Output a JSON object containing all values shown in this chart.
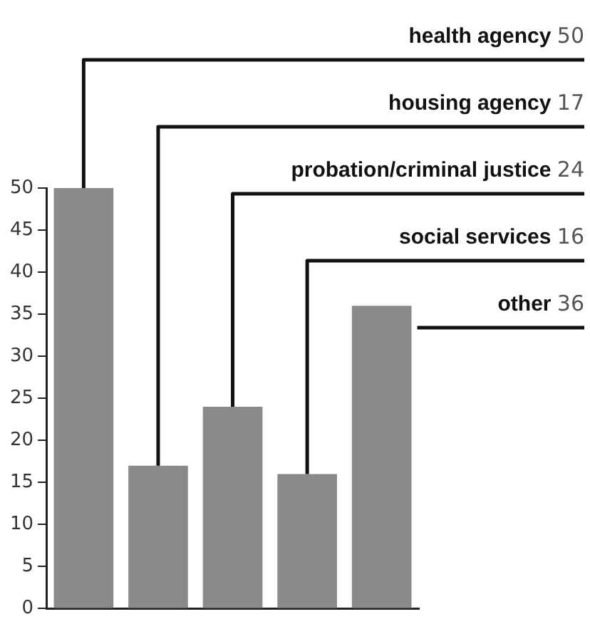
{
  "chart_data": {
    "type": "bar",
    "categories": [
      null,
      null,
      null,
      null,
      null
    ],
    "values": [
      50,
      17,
      24,
      16,
      36
    ],
    "color": "#8a8a8a",
    "ylim": [
      0,
      50
    ],
    "yticks": [
      0,
      5,
      10,
      15,
      20,
      25,
      30,
      35,
      40,
      45,
      50
    ],
    "grid": false,
    "legend": false,
    "tick_labels": "y",
    "annotations": [
      "health agency 50",
      "housing agency 17",
      "probation/criminal justice 24",
      "social services 16",
      "other 36"
    ]
  }
}
